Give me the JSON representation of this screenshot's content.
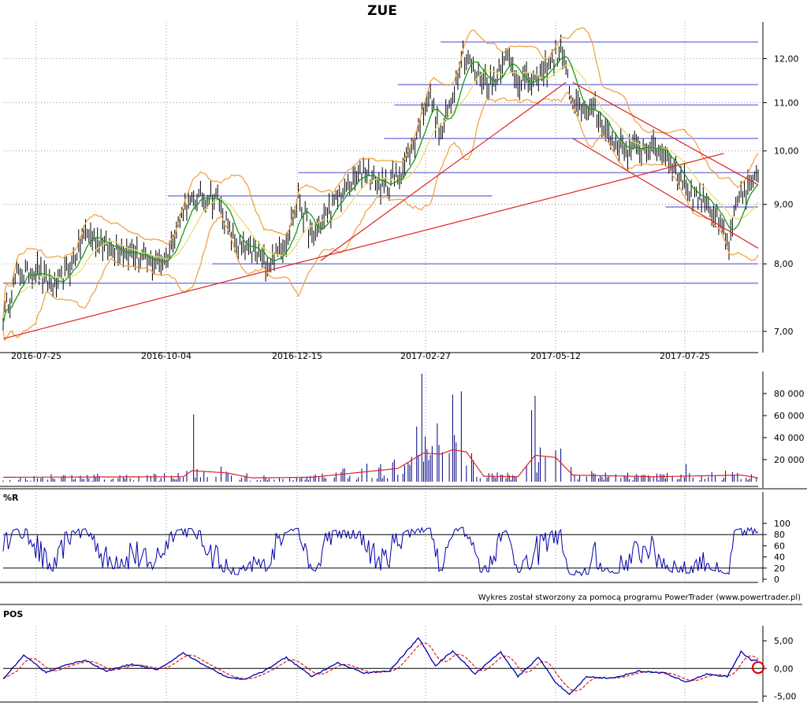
{
  "chart_data": [
    {
      "type": "line",
      "panel": "price",
      "title": "ZUE",
      "x_ticks": [
        "2016-07-25",
        "2016-10-04",
        "2016-12-15",
        "2017-02-27",
        "2017-05-12",
        "2017-07-25"
      ],
      "y_ticks": [
        "7,00",
        "8,00",
        "9,00",
        "10,00",
        "11,00",
        "12,00"
      ],
      "ylim": [
        6.85,
        12.9
      ],
      "y_scale": "log",
      "grid": true,
      "price_keypoints": [
        [
          0,
          7.2
        ],
        [
          8,
          7.8
        ],
        [
          20,
          7.9
        ],
        [
          30,
          7.6
        ],
        [
          40,
          8.0
        ],
        [
          48,
          8.5
        ],
        [
          60,
          8.3
        ],
        [
          75,
          8.2
        ],
        [
          85,
          8.0
        ],
        [
          95,
          8.1
        ],
        [
          105,
          8.9
        ],
        [
          115,
          9.15
        ],
        [
          125,
          9.1
        ],
        [
          135,
          8.3
        ],
        [
          145,
          8.2
        ],
        [
          155,
          8.0
        ],
        [
          165,
          8.4
        ],
        [
          172,
          9.1
        ],
        [
          180,
          8.4
        ],
        [
          190,
          8.9
        ],
        [
          200,
          9.3
        ],
        [
          210,
          9.6
        ],
        [
          222,
          9.3
        ],
        [
          232,
          9.6
        ],
        [
          240,
          10.2
        ],
        [
          248,
          11.2
        ],
        [
          255,
          10.3
        ],
        [
          262,
          11.2
        ],
        [
          268,
          12.2
        ],
        [
          275,
          11.7
        ],
        [
          285,
          11.4
        ],
        [
          292,
          12.1
        ],
        [
          300,
          11.5
        ],
        [
          310,
          11.4
        ],
        [
          320,
          12.0
        ],
        [
          326,
          12.2
        ],
        [
          332,
          10.9
        ],
        [
          345,
          10.8
        ],
        [
          355,
          10.2
        ],
        [
          365,
          10.0
        ],
        [
          375,
          10.1
        ],
        [
          385,
          10.0
        ],
        [
          392,
          9.6
        ],
        [
          400,
          9.2
        ],
        [
          410,
          9.1
        ],
        [
          418,
          8.6
        ],
        [
          423,
          8.3
        ],
        [
          428,
          9.0
        ],
        [
          436,
          9.4
        ]
      ],
      "horizontal_levels": [
        {
          "value": 12.4,
          "from_x": 255,
          "to_x": 440
        },
        {
          "value": 11.4,
          "from_x": 230,
          "to_x": 440
        },
        {
          "value": 10.95,
          "from_x": 228,
          "to_x": 440
        },
        {
          "value": 10.25,
          "from_x": 222,
          "to_x": 440
        },
        {
          "value": 9.58,
          "from_x": 172,
          "to_x": 440
        },
        {
          "value": 9.15,
          "from_x": 96,
          "to_x": 285
        },
        {
          "value": 8.95,
          "from_x": 386,
          "to_x": 440
        },
        {
          "value": 8.0,
          "from_x": 122,
          "to_x": 440
        },
        {
          "value": 7.7,
          "from_x": 0,
          "to_x": 440
        }
      ],
      "trend_lines": [
        {
          "x1": 0,
          "y1": 6.9,
          "x2": 420,
          "y2": 9.95
        },
        {
          "x1": 185,
          "y1": 8.05,
          "x2": 328,
          "y2": 11.45
        },
        {
          "x1": 332,
          "y1": 11.45,
          "x2": 440,
          "y2": 9.35
        },
        {
          "x1": 332,
          "y1": 10.25,
          "x2": 440,
          "y2": 8.25
        }
      ]
    },
    {
      "type": "bar",
      "panel": "volume",
      "y_ticks": [
        "20 000",
        "40 000",
        "60 000",
        "80 000"
      ],
      "ylim": [
        0,
        100000
      ],
      "spikes": [
        [
          111,
          61000
        ],
        [
          241,
          50000
        ],
        [
          244,
          98000
        ],
        [
          253,
          53000
        ],
        [
          262,
          79000
        ],
        [
          267,
          82000
        ],
        [
          308,
          65000
        ],
        [
          310,
          78000
        ],
        [
          398,
          16000
        ]
      ],
      "volume_avg_keypoints": [
        [
          0,
          4000
        ],
        [
          105,
          4500
        ],
        [
          110,
          10000
        ],
        [
          130,
          8000
        ],
        [
          145,
          3500
        ],
        [
          180,
          4000
        ],
        [
          230,
          12000
        ],
        [
          245,
          26000
        ],
        [
          255,
          25000
        ],
        [
          262,
          29000
        ],
        [
          270,
          27000
        ],
        [
          280,
          5000
        ],
        [
          300,
          4500
        ],
        [
          310,
          24000
        ],
        [
          322,
          22000
        ],
        [
          332,
          6000
        ],
        [
          380,
          4500
        ],
        [
          430,
          6000
        ],
        [
          440,
          3500
        ]
      ]
    },
    {
      "type": "line",
      "panel": "williams_r",
      "label": "%R",
      "y_ticks": [
        "0",
        "20",
        "40",
        "60",
        "80",
        "100"
      ],
      "ylim": [
        0,
        100
      ],
      "reference_lines": [
        20,
        80
      ]
    },
    {
      "type": "line",
      "panel": "pos",
      "label": "POS",
      "y_ticks": [
        "-5,00",
        "0,00",
        "5,00"
      ],
      "ylim": [
        -5.8,
        6.3
      ],
      "zero_line": true,
      "pos_keypoints": [
        [
          0,
          -2
        ],
        [
          12,
          2.5
        ],
        [
          25,
          -0.8
        ],
        [
          35,
          0.5
        ],
        [
          48,
          1.5
        ],
        [
          60,
          -0.5
        ],
        [
          75,
          0.8
        ],
        [
          90,
          -0.3
        ],
        [
          105,
          2.8
        ],
        [
          115,
          1.0
        ],
        [
          130,
          -1.5
        ],
        [
          140,
          -2.0
        ],
        [
          150,
          -0.8
        ],
        [
          165,
          2.0
        ],
        [
          180,
          -1.5
        ],
        [
          195,
          1.0
        ],
        [
          210,
          -0.8
        ],
        [
          225,
          -0.5
        ],
        [
          242,
          5.5
        ],
        [
          252,
          0.5
        ],
        [
          262,
          3.2
        ],
        [
          275,
          -1.0
        ],
        [
          290,
          3.0
        ],
        [
          300,
          -1.5
        ],
        [
          312,
          2.0
        ],
        [
          322,
          -2.5
        ],
        [
          330,
          -4.8
        ],
        [
          340,
          -1.5
        ],
        [
          355,
          -1.8
        ],
        [
          370,
          -0.5
        ],
        [
          385,
          -0.8
        ],
        [
          398,
          -2.5
        ],
        [
          410,
          -1.0
        ],
        [
          422,
          -1.5
        ],
        [
          430,
          3.0
        ],
        [
          436,
          1.5
        ]
      ]
    }
  ],
  "credit": "Wykres został stworzony za pomocą programu PowerTrader (www.powertrader.pl)",
  "colors": {
    "price_bar": "#000000",
    "ma_short": "#169a16",
    "ma_long": "#e6e06e",
    "bollinger": "#f0a446",
    "levels": "#8080e0",
    "trend": "#dd2222",
    "volume_bar": "#000080",
    "volume_avg": "#dd2222",
    "indicator": "#0000aa",
    "signal": "#dd2222",
    "marker": "#dd0000"
  }
}
